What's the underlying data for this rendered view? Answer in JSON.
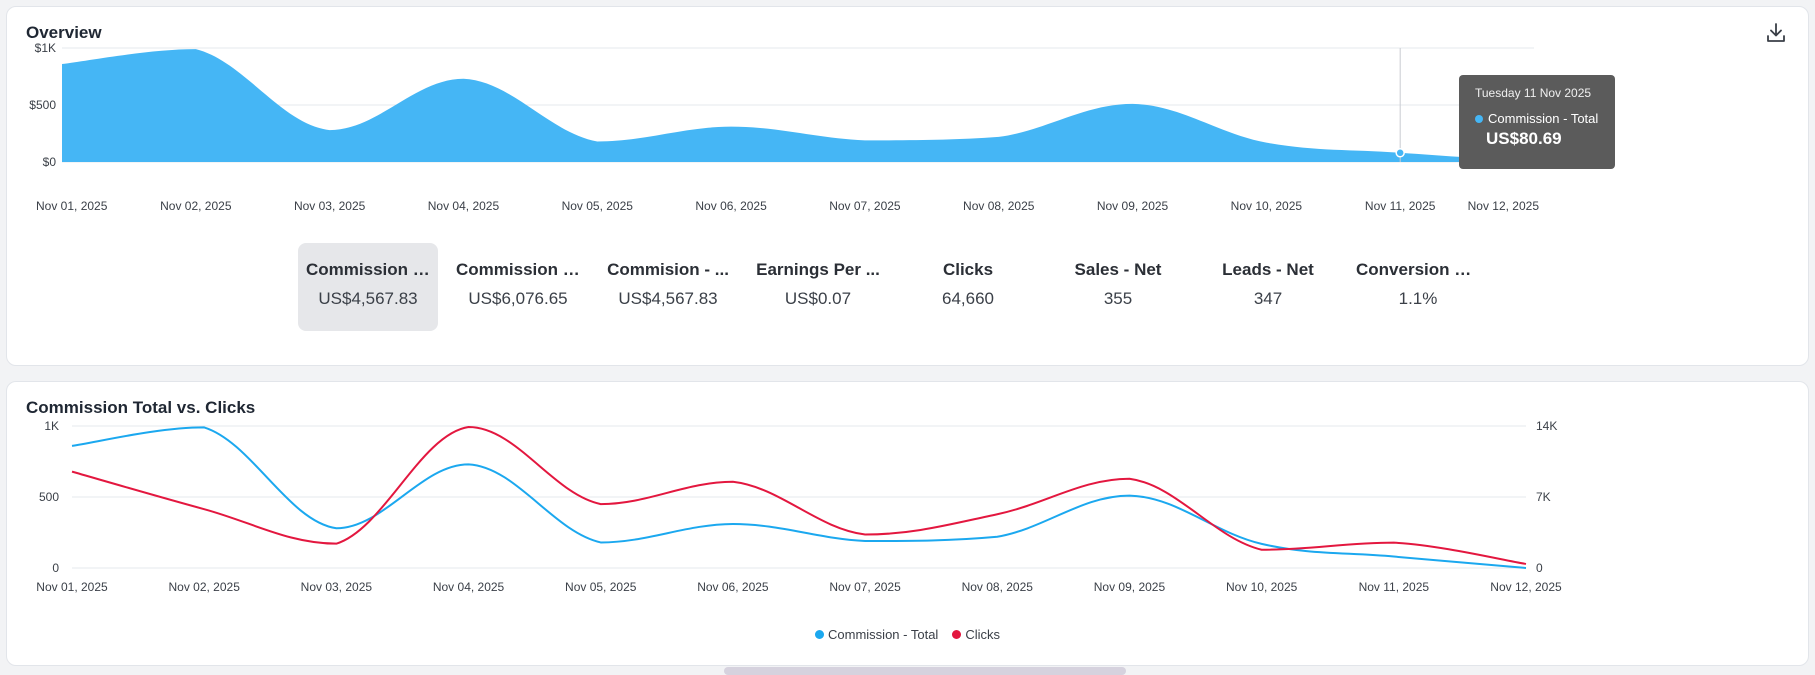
{
  "overview": {
    "title": "Overview",
    "download_icon": "download-icon",
    "tooltip": {
      "date": "Tuesday 11 Nov 2025",
      "series": "Commission - Total",
      "value": "US$80.69"
    },
    "kpis": [
      {
        "label": "Commission - ...",
        "value": "US$4,567.83",
        "active": true
      },
      {
        "label": "Commission - ...",
        "value": "US$6,076.65",
        "active": false
      },
      {
        "label": "Commision - ...",
        "value": "US$4,567.83",
        "active": false
      },
      {
        "label": "Earnings Per ...",
        "value": "US$0.07",
        "active": false
      },
      {
        "label": "Clicks",
        "value": "64,660",
        "active": false
      },
      {
        "label": "Sales - Net",
        "value": "355",
        "active": false
      },
      {
        "label": "Leads - Net",
        "value": "347",
        "active": false
      },
      {
        "label": "Conversion Ra...",
        "value": "1.1%",
        "active": false
      }
    ]
  },
  "commission_chart": {
    "title": "Commission Total vs. Clicks",
    "legend": [
      {
        "label": "Commission - Total",
        "color": "#1ba8ef"
      },
      {
        "label": "Clicks",
        "color": "#e3173f"
      }
    ]
  },
  "chart_data": [
    {
      "type": "area",
      "title": "Overview",
      "x": [
        "Nov 01, 2025",
        "Nov 02, 2025",
        "Nov 03, 2025",
        "Nov 04, 2025",
        "Nov 05, 2025",
        "Nov 06, 2025",
        "Nov 07, 2025",
        "Nov 08, 2025",
        "Nov 09, 2025",
        "Nov 10, 2025",
        "Nov 11, 2025",
        "Nov 12, 2025"
      ],
      "series": [
        {
          "name": "Commission - Total",
          "color": "#45b6f5",
          "values": [
            860,
            990,
            280,
            730,
            180,
            310,
            190,
            220,
            510,
            170,
            80.69,
            0
          ]
        }
      ],
      "yticks": [
        "$0",
        "$500",
        "$1K"
      ],
      "ylim": [
        0,
        1000
      ],
      "grid": true,
      "highlight_index": 10
    },
    {
      "type": "line",
      "title": "Commission Total vs. Clicks",
      "x": [
        "Nov 01, 2025",
        "Nov 02, 2025",
        "Nov 03, 2025",
        "Nov 04, 2025",
        "Nov 05, 2025",
        "Nov 06, 2025",
        "Nov 07, 2025",
        "Nov 08, 2025",
        "Nov 09, 2025",
        "Nov 10, 2025",
        "Nov 11, 2025",
        "Nov 12, 2025"
      ],
      "series": [
        {
          "name": "Commission - Total",
          "axis": "left",
          "color": "#1ba8ef",
          "values": [
            860,
            990,
            280,
            730,
            180,
            310,
            190,
            220,
            510,
            170,
            80.69,
            0
          ]
        },
        {
          "name": "Clicks",
          "axis": "right",
          "color": "#e3173f",
          "values": [
            9500,
            5800,
            2400,
            13900,
            6300,
            8500,
            3300,
            5300,
            8800,
            1800,
            2500,
            400
          ]
        }
      ],
      "yticks_left": [
        "0",
        "500",
        "1K"
      ],
      "yticks_right": [
        "0",
        "7K",
        "14K"
      ],
      "ylim_left": [
        0,
        1000
      ],
      "ylim_right": [
        0,
        14000
      ],
      "grid": true,
      "legend_position": "bottom-center"
    }
  ]
}
